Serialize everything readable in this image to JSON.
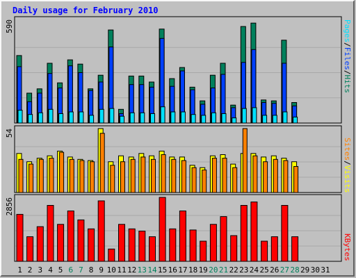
{
  "title": "Daily usage for February 2010",
  "colors": {
    "hits": "#00805c",
    "files": "#0040ff",
    "pages": "#00e0ff",
    "visits": "#ffff00",
    "sites": "#ff8000",
    "kbytes": "#ff0000"
  },
  "labels": {
    "hits": "Hits",
    "files": "Files",
    "pages": "Pages",
    "visits": "Visits",
    "sites": "Sites",
    "kbytes": "KBytes",
    "sep": "/"
  },
  "chart_data": [
    {
      "type": "bar",
      "name": "top",
      "ymax_label": "590",
      "ylim": [
        0,
        590
      ],
      "x": [
        1,
        2,
        3,
        4,
        5,
        6,
        7,
        8,
        9,
        10,
        11,
        12,
        13,
        14,
        15,
        16,
        17,
        18,
        19,
        20,
        21,
        22,
        23,
        24,
        25,
        26,
        27,
        28
      ],
      "series": [
        {
          "name": "Hits",
          "values": [
            395,
            175,
            200,
            350,
            235,
            370,
            345,
            200,
            280,
            545,
            80,
            275,
            275,
            240,
            550,
            260,
            325,
            210,
            130,
            280,
            350,
            105,
            565,
            585,
            135,
            130,
            485,
            120
          ]
        },
        {
          "name": "Files",
          "values": [
            330,
            125,
            175,
            290,
            205,
            335,
            295,
            190,
            240,
            445,
            55,
            225,
            225,
            210,
            495,
            215,
            305,
            195,
            110,
            205,
            285,
            90,
            355,
            430,
            120,
            115,
            350,
            100
          ]
        },
        {
          "name": "Pages",
          "values": [
            75,
            50,
            60,
            80,
            55,
            65,
            65,
            45,
            80,
            85,
            40,
            60,
            60,
            55,
            95,
            65,
            65,
            50,
            45,
            60,
            55,
            30,
            85,
            90,
            45,
            45,
            65,
            35
          ]
        }
      ]
    },
    {
      "type": "bar",
      "name": "middle",
      "ymax_label": "54",
      "ylim": [
        0,
        54
      ],
      "x": [
        1,
        2,
        3,
        4,
        5,
        6,
        7,
        8,
        9,
        10,
        11,
        12,
        13,
        14,
        15,
        16,
        17,
        18,
        19,
        20,
        21,
        22,
        23,
        24,
        25,
        26,
        27,
        28
      ],
      "series": [
        {
          "name": "Visits",
          "values": [
            33,
            26,
            29,
            31,
            35,
            30,
            28,
            27,
            54,
            26,
            31,
            30,
            33,
            31,
            35,
            30,
            30,
            23,
            21,
            31,
            32,
            24,
            33,
            33,
            30,
            31,
            29,
            26
          ]
        },
        {
          "name": "Sites",
          "values": [
            28,
            24,
            28,
            29,
            34,
            28,
            27,
            26,
            50,
            23,
            26,
            28,
            30,
            28,
            32,
            28,
            27,
            21,
            19,
            29,
            29,
            21,
            54,
            31,
            26,
            28,
            27,
            22
          ]
        }
      ]
    },
    {
      "type": "bar",
      "name": "bottom",
      "ymax_label": "2856",
      "ylim": [
        0,
        2856
      ],
      "x": [
        1,
        2,
        3,
        4,
        5,
        6,
        7,
        8,
        9,
        10,
        11,
        12,
        13,
        14,
        15,
        16,
        17,
        18,
        19,
        20,
        21,
        22,
        23,
        24,
        25,
        26,
        27,
        28
      ],
      "series": [
        {
          "name": "KBytes",
          "values": [
            2100,
            1100,
            1550,
            2500,
            1650,
            2250,
            1850,
            1450,
            2700,
            550,
            1650,
            1450,
            1350,
            1100,
            2856,
            1450,
            2250,
            1400,
            900,
            1650,
            2000,
            1150,
            2500,
            2650,
            900,
            1100,
            2500,
            1100
          ]
        }
      ]
    }
  ],
  "xaxis": {
    "ticks": [
      "1",
      "2",
      "3",
      "4",
      "5",
      "6",
      "7",
      "8",
      "9",
      "10",
      "11",
      "12",
      "13",
      "14",
      "15",
      "16",
      "17",
      "18",
      "19",
      "20",
      "21",
      "22",
      "23",
      "24",
      "25",
      "26",
      "27",
      "28",
      "29",
      "30",
      "31"
    ],
    "weekend_days": [
      6,
      7,
      13,
      14,
      20,
      21,
      27,
      28
    ],
    "weekday_color": "#000000",
    "weekend_color": "#00805c"
  }
}
